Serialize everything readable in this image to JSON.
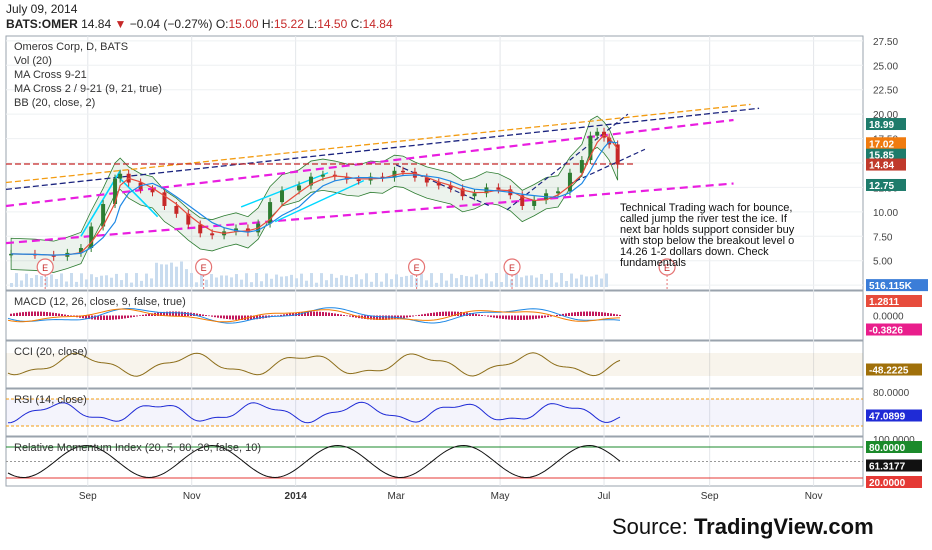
{
  "header": {
    "date": "July 09, 2014",
    "symbol": "BATS:OMER",
    "last": "14.84",
    "change": "−0.04 (−0.27%)",
    "open_label": "O:",
    "open": "15.00",
    "high_label": "H:",
    "high": "15.22",
    "low_label": "L:",
    "low": "14.50",
    "close_label": "C:",
    "close": "14.84"
  },
  "source": {
    "prefix": "Source: ",
    "brand": "TradingView.com"
  },
  "chart_data": [
    {
      "type": "line",
      "panel": "price",
      "legend": [
        "Omeros Corp, D, BATS",
        "Vol (20)",
        "MA Cross 9-21",
        "MA Cross 2 / 9-21 (9, 21, true)",
        "BB (20, close, 2)"
      ],
      "yticks": [
        2.5,
        5.0,
        7.5,
        10.0,
        12.5,
        15.0,
        17.5,
        20.0,
        22.5,
        25.0,
        27.5
      ],
      "ytick_labels": [
        "2.50",
        "5.00",
        "7.50",
        "10.00",
        "12.50",
        "15.00",
        "17.50",
        "20.00",
        "22.50",
        "25.00",
        "27.50"
      ],
      "ylim": [
        2.0,
        28.0
      ],
      "xlim": [
        "2013-07-15",
        "2014-11-30"
      ],
      "price_labels": [
        {
          "value": 18.99,
          "label": "18.99",
          "color": "#1e7b6b"
        },
        {
          "value": 17.02,
          "label": "17.02",
          "color": "#f07b0f"
        },
        {
          "value": 15.85,
          "label": "15.85",
          "color": "#1e7b6b"
        },
        {
          "value": 14.84,
          "label": "14.84",
          "color": "#c0392b"
        },
        {
          "value": 12.75,
          "label": "12.75",
          "color": "#1e7b6b"
        },
        {
          "value": 2.5,
          "label": "516.115K",
          "color": "#3b7dd8"
        }
      ],
      "series": [
        {
          "values": [
            [
              "2013-07-18",
              5.7
            ],
            [
              "2013-08-01",
              5.6
            ],
            [
              "2013-08-12",
              5.4
            ],
            [
              "2013-08-20",
              5.8
            ],
            [
              "2013-08-28",
              6.3
            ],
            [
              "2013-09-03",
              8.5
            ],
            [
              "2013-09-10",
              10.8
            ],
            [
              "2013-09-17",
              13.4
            ],
            [
              "2013-09-20",
              13.9
            ],
            [
              "2013-09-25",
              13.0
            ],
            [
              "2013-10-02",
              12.3
            ],
            [
              "2013-10-09",
              12.0
            ],
            [
              "2013-10-16",
              10.6
            ],
            [
              "2013-10-23",
              9.8
            ],
            [
              "2013-10-30",
              8.7
            ],
            [
              "2013-11-06",
              7.8
            ],
            [
              "2013-11-13",
              7.6
            ],
            [
              "2013-11-20",
              8.0
            ],
            [
              "2013-11-27",
              8.3
            ],
            [
              "2013-12-04",
              7.9
            ],
            [
              "2013-12-10",
              8.8
            ],
            [
              "2013-12-17",
              11.0
            ],
            [
              "2013-12-24",
              12.2
            ],
            [
              "2014-01-03",
              12.7
            ],
            [
              "2014-01-10",
              13.6
            ],
            [
              "2014-01-17",
              13.8
            ],
            [
              "2014-01-24",
              13.6
            ],
            [
              "2014-01-31",
              13.3
            ],
            [
              "2014-02-07",
              13.2
            ],
            [
              "2014-02-14",
              13.6
            ],
            [
              "2014-02-21",
              13.5
            ],
            [
              "2014-02-28",
              14.2
            ],
            [
              "2014-03-05",
              14.1
            ],
            [
              "2014-03-12",
              13.5
            ],
            [
              "2014-03-19",
              13.0
            ],
            [
              "2014-03-26",
              12.7
            ],
            [
              "2014-04-02",
              12.4
            ],
            [
              "2014-04-09",
              11.6
            ],
            [
              "2014-04-16",
              11.9
            ],
            [
              "2014-04-23",
              12.5
            ],
            [
              "2014-04-30",
              12.3
            ],
            [
              "2014-05-07",
              11.7
            ],
            [
              "2014-05-14",
              10.6
            ],
            [
              "2014-05-21",
              11.2
            ],
            [
              "2014-05-28",
              11.9
            ],
            [
              "2014-06-04",
              12.1
            ],
            [
              "2014-06-11",
              14.0
            ],
            [
              "2014-06-18",
              15.3
            ],
            [
              "2014-06-23",
              17.8
            ],
            [
              "2014-06-27",
              18.2
            ],
            [
              "2014-07-01",
              17.6
            ],
            [
              "2014-07-04",
              16.9
            ],
            [
              "2014-07-09",
              14.84
            ]
          ]
        }
      ]
    },
    {
      "type": "line",
      "panel": "macd",
      "legend": "MACD (12, 26, close, 9, false, true)",
      "yticks": [
        0.0
      ],
      "ytick_labels": [
        "0.0000"
      ],
      "value_labels": [
        {
          "value": 1.2811,
          "label": "1.2811",
          "color": "#e74c3c"
        },
        {
          "value": -0.3826,
          "label": "-0.3826",
          "color": "#e91e8c"
        }
      ]
    },
    {
      "type": "line",
      "panel": "cci",
      "legend": "CCI (20, close)",
      "value_labels": [
        {
          "value": -48.2225,
          "label": "-48.2225",
          "color": "#a0700a"
        }
      ]
    },
    {
      "type": "line",
      "panel": "rsi",
      "legend": "RSI (14, close)",
      "yticks": [
        80.0
      ],
      "ytick_labels": [
        "80.0000"
      ],
      "value_labels": [
        {
          "value": 47.0899,
          "label": "47.0899",
          "color": "#1f2bd6"
        }
      ]
    },
    {
      "type": "line",
      "panel": "rmi",
      "legend": "Relative Momentum Index (20, 5, 80, 20, false, 10)",
      "yticks": [
        100.0
      ],
      "ytick_labels": [
        "100.0000"
      ],
      "value_labels": [
        {
          "value": 80.0,
          "label": "80.0000",
          "color": "#1b8a2b"
        },
        {
          "value": 61.3177,
          "label": "61.3177",
          "color": "#111111"
        },
        {
          "value": 20.0,
          "label": "20.0000",
          "color": "#e53935"
        }
      ]
    }
  ],
  "xaxis": {
    "ticks": [
      {
        "date": "2013-09-01",
        "label": "Sep",
        "bold": false
      },
      {
        "date": "2013-11-01",
        "label": "Nov",
        "bold": false
      },
      {
        "date": "2014-01-01",
        "label": "2014",
        "bold": true
      },
      {
        "date": "2014-03-01",
        "label": "Mar",
        "bold": false
      },
      {
        "date": "2014-05-01",
        "label": "May",
        "bold": false
      },
      {
        "date": "2014-07-01",
        "label": "Jul",
        "bold": false
      },
      {
        "date": "2014-09-01",
        "label": "Sep",
        "bold": false
      },
      {
        "date": "2014-11-01",
        "label": "Nov",
        "bold": false
      }
    ]
  },
  "earnings_markers": [
    {
      "date": "2013-08-07",
      "label": "E"
    },
    {
      "date": "2013-11-08",
      "label": "E"
    },
    {
      "date": "2014-03-13",
      "label": "E"
    },
    {
      "date": "2014-05-08",
      "label": "E"
    },
    {
      "date": "2014-08-07",
      "label": "E"
    }
  ],
  "annotation": {
    "lines": [
      "Technical Trading wach for bounce,",
      "called jump the river test the ice. If",
      "next bar holds support consider buy",
      "with stop below the breakout level o",
      "14.26 1-2 dollars down.  Check",
      "fundamentals"
    ]
  },
  "colors": {
    "up": "#2e7d32",
    "down": "#c62828",
    "bb": "#2e7d32",
    "ma_fast": "#e74c3c",
    "ma_slow": "#1e88e5",
    "trend_orange": "#f39c12",
    "trend_blue": "#1a237e",
    "trend_magenta": "#e91ee0",
    "trend_cyan": "#00d8ff",
    "support_red": "#c62828"
  }
}
